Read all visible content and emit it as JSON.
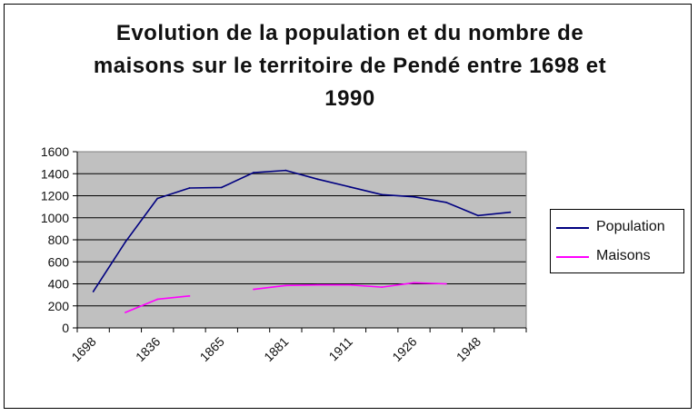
{
  "chart_data": {
    "type": "line",
    "title_lines": [
      "Evolution de la population et du nombre de",
      "maisons sur le territoire de Pendé entre 1698 et",
      "1990"
    ],
    "xlabel": "",
    "ylabel": "",
    "x_tick_labels": [
      "1698",
      "1836",
      "1865",
      "1881",
      "1911",
      "1926",
      "1948"
    ],
    "x": [
      "1698",
      "",
      "1836",
      "",
      "1865",
      "",
      "1881",
      "",
      "1911",
      "",
      "1926",
      "",
      "1948",
      ""
    ],
    "ylim": [
      0,
      1600
    ],
    "y_ticks": [
      "0",
      "200",
      "400",
      "600",
      "800",
      "1000",
      "1200",
      "1400",
      "1600"
    ],
    "grid": true,
    "plot_background": "#c0c0c0",
    "legend_position": "right",
    "series": [
      {
        "name": "Population",
        "color": "#000080",
        "values": [
          330,
          780,
          1175,
          1270,
          1275,
          1410,
          1430,
          1350,
          1280,
          1210,
          1190,
          1140,
          1020,
          1050
        ]
      },
      {
        "name": "Maisons",
        "color": "#ff00ff",
        "values": [
          null,
          140,
          260,
          290,
          null,
          350,
          385,
          390,
          390,
          370,
          410,
          400,
          null,
          null
        ]
      }
    ]
  }
}
